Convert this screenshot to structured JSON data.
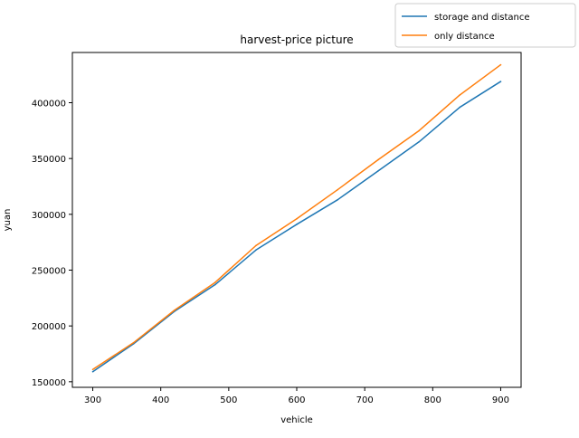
{
  "chart_data": {
    "type": "line",
    "title": "harvest-price picture",
    "xlabel": "vehicle",
    "ylabel": "yuan",
    "x": [
      300,
      360,
      420,
      480,
      540,
      600,
      660,
      720,
      780,
      840,
      900
    ],
    "xlim": [
      270,
      930
    ],
    "ylim": [
      145000,
      445000
    ],
    "xticks": [
      300,
      400,
      500,
      600,
      700,
      800,
      900
    ],
    "yticks": [
      150000,
      200000,
      250000,
      300000,
      350000,
      400000
    ],
    "legend_position": "top-right",
    "grid": false,
    "series": [
      {
        "name": "storage and distance",
        "color": "#1f77b4",
        "values": [
          159000,
          184000,
          213000,
          237000,
          268000,
          291000,
          313000,
          339000,
          365000,
          396000,
          419000
        ]
      },
      {
        "name": "only distance",
        "color": "#ff7f0e",
        "values": [
          161000,
          185000,
          214000,
          239000,
          272000,
          296000,
          322000,
          349000,
          375000,
          407000,
          434000
        ]
      }
    ]
  }
}
